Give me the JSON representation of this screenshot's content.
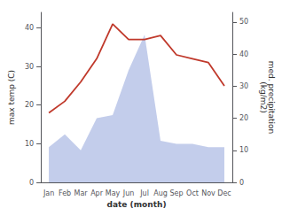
{
  "chart_data": {
    "type": "line",
    "xlabel": "date (month)",
    "ylabel": "max temp (C)",
    "y2label": "med. precipitation\n(kg/m2)",
    "categories": [
      "Jan",
      "Feb",
      "Mar",
      "Apr",
      "May",
      "Jun",
      "Jul",
      "Aug",
      "Sep",
      "Oct",
      "Nov",
      "Dec"
    ],
    "series": [
      {
        "type": "area",
        "axis": "y2",
        "color": "#b8c4e8",
        "values": [
          11,
          15,
          10,
          20,
          21,
          35,
          46,
          13,
          12,
          12,
          11,
          11
        ]
      },
      {
        "type": "line",
        "color": "#c0392b",
        "values": [
          18,
          21,
          26,
          32,
          41,
          37,
          37,
          38,
          33,
          32,
          31,
          25
        ]
      }
    ],
    "ylim": [
      0,
      44
    ],
    "yticks": [
      0,
      10,
      20,
      30,
      40
    ],
    "y2lim": [
      0,
      53
    ],
    "y2ticks": [
      0,
      10,
      20,
      30,
      40,
      50
    ],
    "grid": false
  }
}
